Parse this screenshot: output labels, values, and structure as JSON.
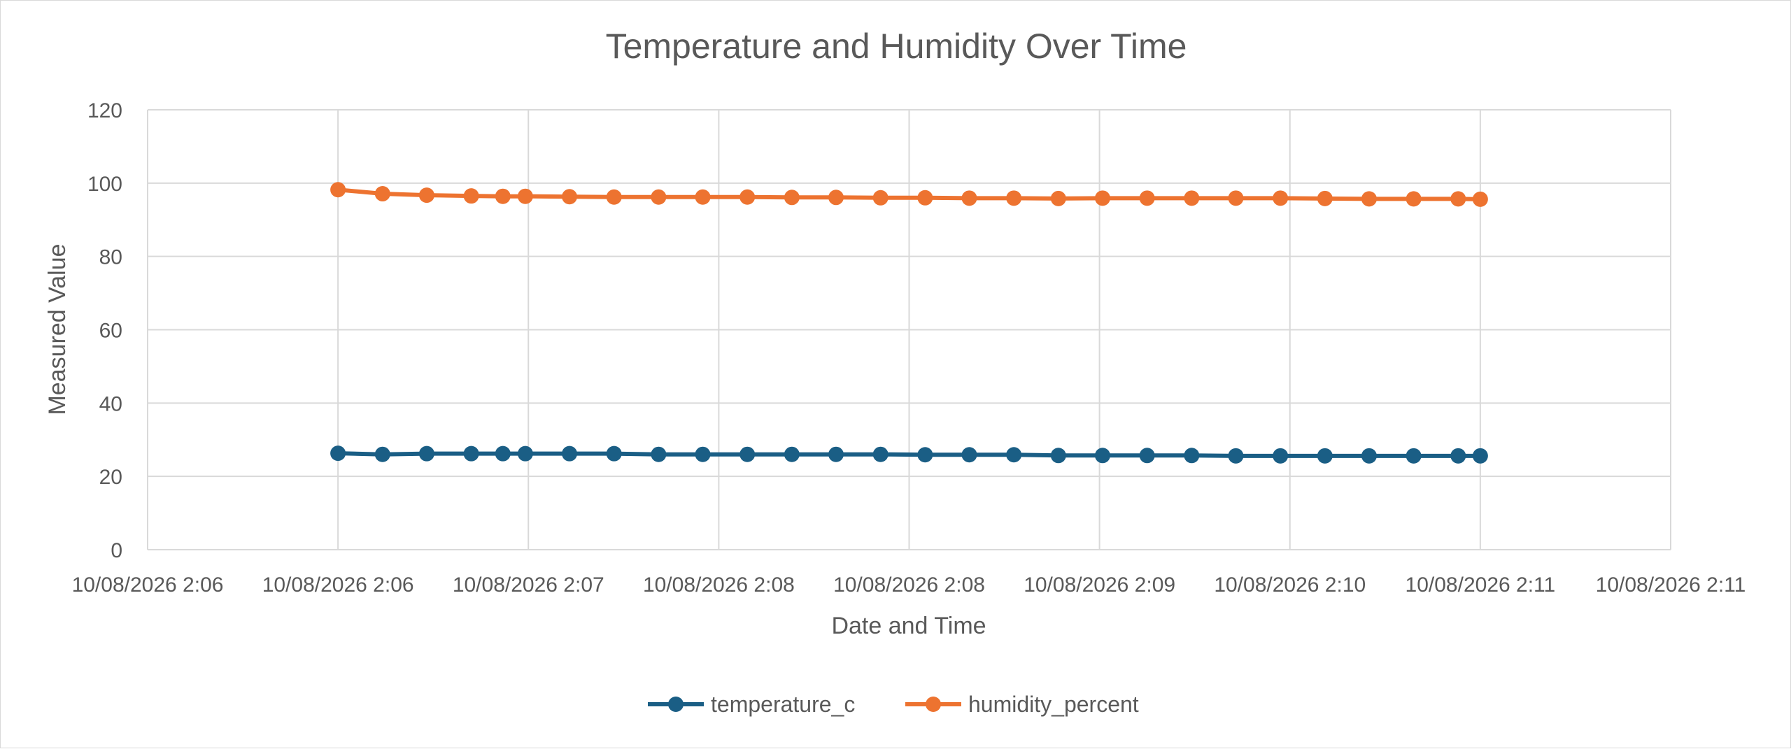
{
  "chart_data": {
    "type": "line",
    "title": "Temperature and Humidity Over Time",
    "xlabel": "Date and Time",
    "ylabel": "Measured Value",
    "ylim": [
      0,
      120
    ],
    "yticks": [
      0,
      20,
      40,
      60,
      80,
      100,
      120
    ],
    "x_tick_labels": [
      "10/08/2026 2:06",
      "10/08/2026 2:06",
      "10/08/2026 2:07",
      "10/08/2026 2:08",
      "10/08/2026 2:08",
      "10/08/2026 2:09",
      "10/08/2026 2:10",
      "10/08/2026 2:11",
      "10/08/2026 2:11"
    ],
    "grid": true,
    "legend_position": "bottom",
    "x_offsets_minutes": [
      0.5,
      0.617,
      0.733,
      0.85,
      0.933,
      0.992,
      1.108,
      1.225,
      1.342,
      1.458,
      1.575,
      1.692,
      1.808,
      1.925,
      2.042,
      2.158,
      2.275,
      2.392,
      2.508,
      2.625,
      2.742,
      2.858,
      2.975,
      3.092,
      3.208,
      3.325,
      3.442,
      3.5
    ],
    "series": [
      {
        "name": "temperature_c",
        "color": "#1a5e85",
        "values": [
          26.3,
          26.0,
          26.2,
          26.2,
          26.2,
          26.2,
          26.2,
          26.2,
          26.0,
          26.0,
          26.0,
          26.0,
          26.0,
          26.0,
          25.9,
          25.9,
          25.9,
          25.7,
          25.7,
          25.7,
          25.7,
          25.6,
          25.6,
          25.6,
          25.6,
          25.6,
          25.6,
          25.6
        ]
      },
      {
        "name": "humidity_percent",
        "color": "#ed7330",
        "values": [
          98.2,
          97.1,
          96.7,
          96.5,
          96.4,
          96.4,
          96.3,
          96.2,
          96.2,
          96.2,
          96.2,
          96.1,
          96.1,
          96.0,
          96.0,
          95.9,
          95.9,
          95.8,
          95.9,
          95.9,
          95.9,
          95.9,
          95.9,
          95.8,
          95.7,
          95.7,
          95.7,
          95.6
        ]
      }
    ]
  }
}
